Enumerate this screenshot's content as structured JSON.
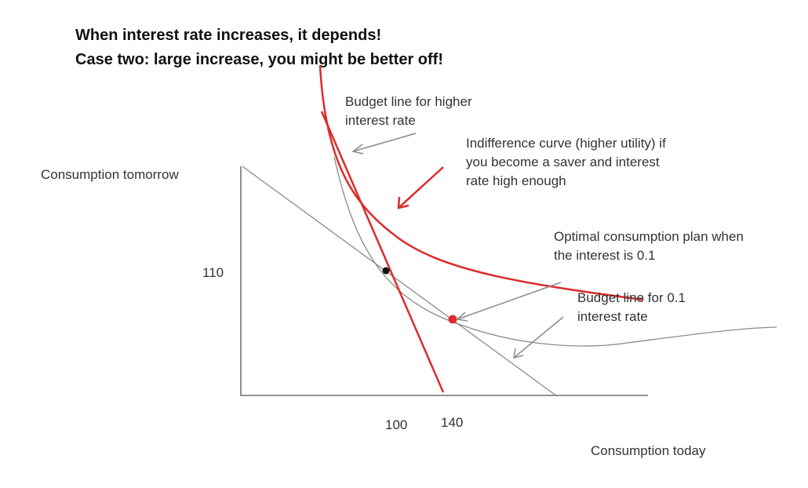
{
  "title": {
    "line1": "When interest rate increases, it depends!",
    "line2": "Case two: large increase, you might be better off!"
  },
  "axes": {
    "y_label": "Consumption tomorrow",
    "x_label": "Consumption today",
    "y_tick": "110",
    "x_ticks": [
      "100",
      "140"
    ]
  },
  "annotations": {
    "budget_high": "Budget line for higher interest rate",
    "indifference_high": "Indifference curve (higher utility) if you become a saver and interest rate high enough",
    "optimal_plan": "Optimal consumption plan when the interest is 0.1",
    "budget_low": "Budget line for 0.1 interest rate"
  },
  "colors": {
    "red": "#dd2a2a",
    "gray_line": "#8a8a8a",
    "axis": "#6e6e6e",
    "text": "#333333"
  }
}
